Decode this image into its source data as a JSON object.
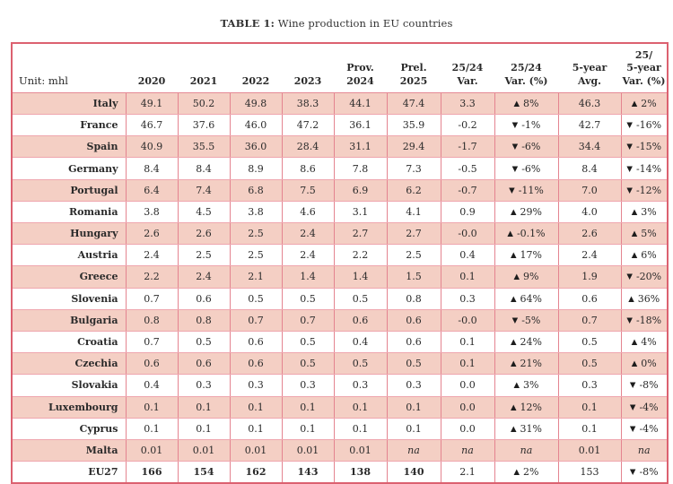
{
  "caption": {
    "label": "TABLE 1:",
    "text": "Wine production in EU countries"
  },
  "colors": {
    "row_shade": "#f4cfc4",
    "grid_border": "#e48490",
    "outer_border": "#dc6170",
    "text": "#2a2a2a"
  },
  "icons": {
    "up": "▲",
    "down": "▼"
  },
  "table": {
    "unit_label": "Unit: mhl",
    "columns": [
      {
        "id": "2020",
        "lines": [
          "2020"
        ]
      },
      {
        "id": "2021",
        "lines": [
          "2021"
        ]
      },
      {
        "id": "2022",
        "lines": [
          "2022"
        ]
      },
      {
        "id": "2023",
        "lines": [
          "2023"
        ]
      },
      {
        "id": "prov-2024",
        "lines": [
          "Prov.",
          "2024"
        ]
      },
      {
        "id": "prel-2025",
        "lines": [
          "Prel.",
          "2025"
        ]
      },
      {
        "id": "var-25-24",
        "lines": [
          "25/24",
          "Var."
        ]
      },
      {
        "id": "var-pct-25-24",
        "lines": [
          "25/24",
          "Var. (%)"
        ]
      },
      {
        "id": "avg-5-year",
        "lines": [
          "5-year",
          "Avg."
        ]
      },
      {
        "id": "var-pct-25-5-year",
        "lines": [
          "25/",
          "5-year",
          "Var. (%)"
        ]
      }
    ],
    "rows": [
      {
        "country": "Italy",
        "shaded": true,
        "bold": false,
        "values": [
          "49.1",
          "50.2",
          "49.8",
          "38.3",
          "44.1",
          "47.4"
        ],
        "var": "3.3",
        "var_pct": {
          "dir": "up",
          "label": "8%"
        },
        "avg": "46.3",
        "var5": {
          "dir": "up",
          "label": "2%"
        }
      },
      {
        "country": "France",
        "shaded": false,
        "bold": false,
        "values": [
          "46.7",
          "37.6",
          "46.0",
          "47.2",
          "36.1",
          "35.9"
        ],
        "var": "-0.2",
        "var_pct": {
          "dir": "down",
          "label": "-1%"
        },
        "avg": "42.7",
        "var5": {
          "dir": "down",
          "label": "-16%"
        }
      },
      {
        "country": "Spain",
        "shaded": true,
        "bold": false,
        "values": [
          "40.9",
          "35.5",
          "36.0",
          "28.4",
          "31.1",
          "29.4"
        ],
        "var": "-1.7",
        "var_pct": {
          "dir": "down",
          "label": "-6%"
        },
        "avg": "34.4",
        "var5": {
          "dir": "down",
          "label": "-15%"
        }
      },
      {
        "country": "Germany",
        "shaded": false,
        "bold": false,
        "values": [
          "8.4",
          "8.4",
          "8.9",
          "8.6",
          "7.8",
          "7.3"
        ],
        "var": "-0.5",
        "var_pct": {
          "dir": "down",
          "label": "-6%"
        },
        "avg": "8.4",
        "var5": {
          "dir": "down",
          "label": "-14%"
        }
      },
      {
        "country": "Portugal",
        "shaded": true,
        "bold": false,
        "values": [
          "6.4",
          "7.4",
          "6.8",
          "7.5",
          "6.9",
          "6.2"
        ],
        "var": "-0.7",
        "var_pct": {
          "dir": "down",
          "label": "-11%"
        },
        "avg": "7.0",
        "var5": {
          "dir": "down",
          "label": "-12%"
        }
      },
      {
        "country": "Romania",
        "shaded": false,
        "bold": false,
        "values": [
          "3.8",
          "4.5",
          "3.8",
          "4.6",
          "3.1",
          "4.1"
        ],
        "var": "0.9",
        "var_pct": {
          "dir": "up",
          "label": "29%"
        },
        "avg": "4.0",
        "var5": {
          "dir": "up",
          "label": "3%"
        }
      },
      {
        "country": "Hungary",
        "shaded": true,
        "bold": false,
        "values": [
          "2.6",
          "2.6",
          "2.5",
          "2.4",
          "2.7",
          "2.7"
        ],
        "var": "-0.0",
        "var_pct": {
          "dir": "up",
          "label": "-0.1%"
        },
        "avg": "2.6",
        "var5": {
          "dir": "up",
          "label": "5%"
        }
      },
      {
        "country": "Austria",
        "shaded": false,
        "bold": false,
        "values": [
          "2.4",
          "2.5",
          "2.5",
          "2.4",
          "2.2",
          "2.5"
        ],
        "var": "0.4",
        "var_pct": {
          "dir": "up",
          "label": "17%"
        },
        "avg": "2.4",
        "var5": {
          "dir": "up",
          "label": "6%"
        }
      },
      {
        "country": "Greece",
        "shaded": true,
        "bold": false,
        "values": [
          "2.2",
          "2.4",
          "2.1",
          "1.4",
          "1.4",
          "1.5"
        ],
        "var": "0.1",
        "var_pct": {
          "dir": "up",
          "label": "9%"
        },
        "avg": "1.9",
        "var5": {
          "dir": "down",
          "label": "-20%"
        }
      },
      {
        "country": "Slovenia",
        "shaded": false,
        "bold": false,
        "values": [
          "0.7",
          "0.6",
          "0.5",
          "0.5",
          "0.5",
          "0.8"
        ],
        "var": "0.3",
        "var_pct": {
          "dir": "up",
          "label": "64%"
        },
        "avg": "0.6",
        "var5": {
          "dir": "up",
          "label": "36%"
        }
      },
      {
        "country": "Bulgaria",
        "shaded": true,
        "bold": false,
        "values": [
          "0.8",
          "0.8",
          "0.7",
          "0.7",
          "0.6",
          "0.6"
        ],
        "var": "-0.0",
        "var_pct": {
          "dir": "down",
          "label": "-5%"
        },
        "avg": "0.7",
        "var5": {
          "dir": "down",
          "label": "-18%"
        }
      },
      {
        "country": "Croatia",
        "shaded": false,
        "bold": false,
        "values": [
          "0.7",
          "0.5",
          "0.6",
          "0.5",
          "0.4",
          "0.6"
        ],
        "var": "0.1",
        "var_pct": {
          "dir": "up",
          "label": "24%"
        },
        "avg": "0.5",
        "var5": {
          "dir": "up",
          "label": "4%"
        }
      },
      {
        "country": "Czechia",
        "shaded": true,
        "bold": false,
        "values": [
          "0.6",
          "0.6",
          "0.6",
          "0.5",
          "0.5",
          "0.5"
        ],
        "var": "0.1",
        "var_pct": {
          "dir": "up",
          "label": "21%"
        },
        "avg": "0.5",
        "var5": {
          "dir": "up",
          "label": "0%"
        }
      },
      {
        "country": "Slovakia",
        "shaded": false,
        "bold": false,
        "values": [
          "0.4",
          "0.3",
          "0.3",
          "0.3",
          "0.3",
          "0.3"
        ],
        "var": "0.0",
        "var_pct": {
          "dir": "up",
          "label": "3%"
        },
        "avg": "0.3",
        "var5": {
          "dir": "down",
          "label": "-8%"
        }
      },
      {
        "country": "Luxembourg",
        "shaded": true,
        "bold": false,
        "values": [
          "0.1",
          "0.1",
          "0.1",
          "0.1",
          "0.1",
          "0.1"
        ],
        "var": "0.0",
        "var_pct": {
          "dir": "up",
          "label": "12%"
        },
        "avg": "0.1",
        "var5": {
          "dir": "down",
          "label": "-4%"
        }
      },
      {
        "country": "Cyprus",
        "shaded": false,
        "bold": false,
        "values": [
          "0.1",
          "0.1",
          "0.1",
          "0.1",
          "0.1",
          "0.1"
        ],
        "var": "0.0",
        "var_pct": {
          "dir": "up",
          "label": "31%"
        },
        "avg": "0.1",
        "var5": {
          "dir": "down",
          "label": "-4%"
        }
      },
      {
        "country": "Malta",
        "shaded": true,
        "bold": false,
        "values": [
          "0.01",
          "0.01",
          "0.01",
          "0.01",
          "0.01",
          "na"
        ],
        "var": "na",
        "var_pct": {
          "dir": null,
          "label": "na"
        },
        "avg": "0.01",
        "var5": {
          "dir": null,
          "label": "na"
        }
      },
      {
        "country": "EU27",
        "shaded": false,
        "bold": true,
        "values": [
          "166",
          "154",
          "162",
          "143",
          "138",
          "140"
        ],
        "var": "2.1",
        "var_pct": {
          "dir": "up",
          "label": "2%"
        },
        "avg": "153",
        "var5": {
          "dir": "down",
          "label": "-8%"
        }
      }
    ]
  }
}
